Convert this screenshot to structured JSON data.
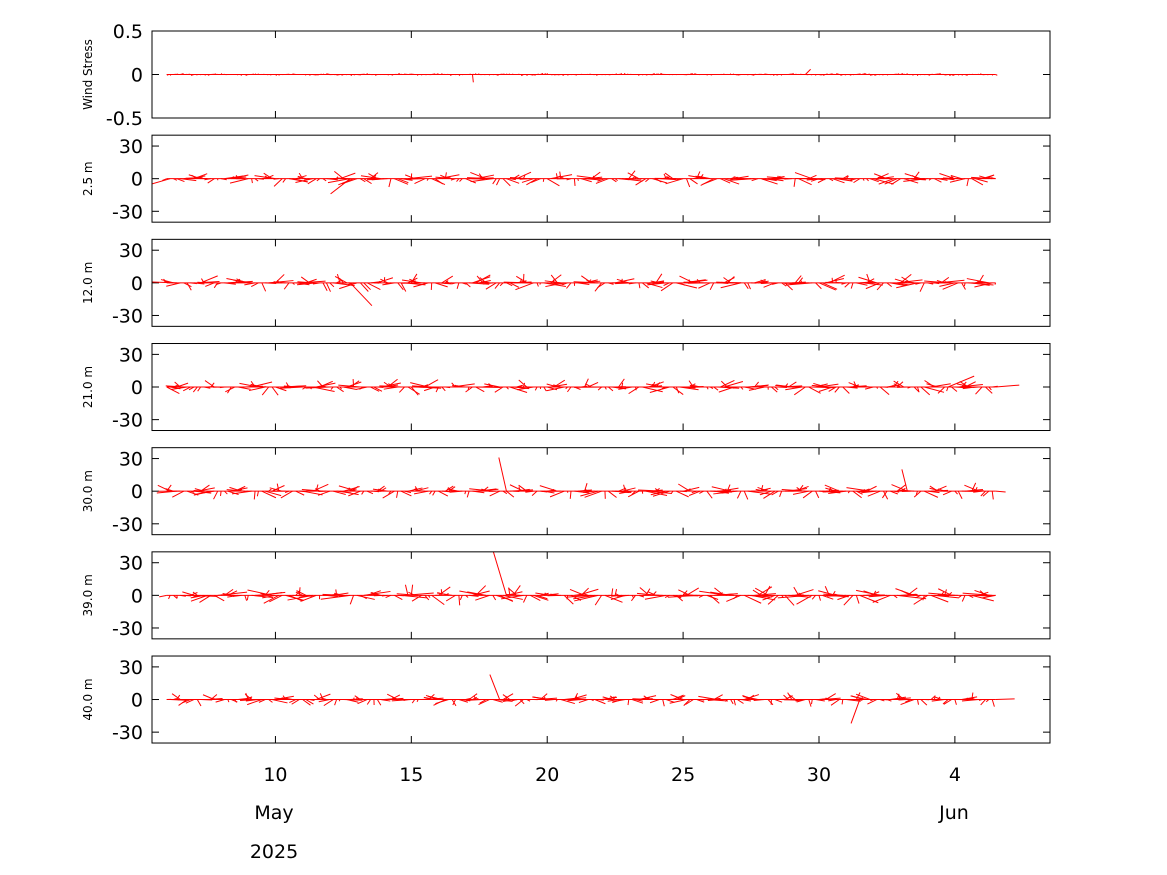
{
  "chart_data": {
    "type": "stick-plot",
    "x_axis": {
      "tick_dates": [
        "2025-05-10",
        "2025-05-15",
        "2025-05-20",
        "2025-05-25",
        "2025-05-30",
        "2025-06-04"
      ],
      "tick_labels": [
        "10",
        "15",
        "20",
        "25",
        "30",
        "4"
      ],
      "month_labels": [
        {
          "text": "May",
          "date": "2025-05-10"
        },
        {
          "text": "Jun",
          "date": "2025-06-04"
        }
      ],
      "year_label": {
        "text": "2025",
        "date": "2025-05-10"
      },
      "xlim": [
        "2025-05-05T11:00",
        "2025-06-07T12:00"
      ],
      "data_range": [
        "2025-05-06",
        "2025-06-05T12:00"
      ]
    },
    "panels": [
      {
        "ylabel": "Wind Stress",
        "ylim": [
          -0.5,
          0.5
        ],
        "yticks": [
          0.5,
          0,
          -0.5
        ],
        "ytick_labels": [
          "0.5",
          "0",
          "-0.5"
        ],
        "amplitude": 0.025,
        "notable": [
          {
            "date": "2025-05-17T06:00",
            "u": 0.01,
            "v": -0.09
          },
          {
            "date": "2025-05-29T12:00",
            "u": 0.06,
            "v": 0.06
          }
        ]
      },
      {
        "ylabel": "2.5 m",
        "ylim": [
          -40,
          40
        ],
        "yticks": [
          30,
          0,
          -30
        ],
        "ytick_labels": [
          "30",
          "0",
          "-30"
        ],
        "amplitude": 12,
        "notable": [
          {
            "date": "2025-05-12T18:00",
            "u": -18,
            "v": -14
          }
        ]
      },
      {
        "ylabel": "12.0 m",
        "ylim": [
          -40,
          40
        ],
        "yticks": [
          30,
          0,
          -30
        ],
        "ytick_labels": [
          "30",
          "0",
          "-30"
        ],
        "amplitude": 13,
        "notable": [
          {
            "date": "2025-05-12T18:00",
            "u": 20,
            "v": -21
          }
        ]
      },
      {
        "ylabel": "21.0 m",
        "ylim": [
          -40,
          40
        ],
        "yticks": [
          30,
          0,
          -30
        ],
        "ytick_labels": [
          "30",
          "0",
          "-30"
        ],
        "amplitude": 12,
        "notable": [
          {
            "date": "2025-06-03T18:00",
            "u": 24,
            "v": 10
          }
        ]
      },
      {
        "ylabel": "30.0 m",
        "ylim": [
          -40,
          40
        ],
        "yticks": [
          30,
          0,
          -30
        ],
        "ytick_labels": [
          "30",
          "0",
          "-30"
        ],
        "amplitude": 12,
        "notable": [
          {
            "date": "2025-05-18T12:00",
            "u": -7,
            "v": 31
          },
          {
            "date": "2025-06-02T06:00",
            "u": -5,
            "v": 20
          }
        ]
      },
      {
        "ylabel": "39.0 m",
        "ylim": [
          -40,
          40
        ],
        "yticks": [
          30,
          0,
          -30
        ],
        "ytick_labels": [
          "30",
          "0",
          "-30"
        ],
        "amplitude": 15,
        "notable": [
          {
            "date": "2025-05-18T12:00",
            "u": -12,
            "v": 40
          }
        ]
      },
      {
        "ylabel": "40.0 m",
        "ylim": [
          -40,
          40
        ],
        "yticks": [
          30,
          0,
          -30
        ],
        "ytick_labels": [
          "30",
          "0",
          "-30"
        ],
        "amplitude": 10,
        "notable": [
          {
            "date": "2025-05-18T06:00",
            "u": -9,
            "v": 23
          },
          {
            "date": "2025-05-31T12:00",
            "u": -8,
            "v": -22
          }
        ]
      }
    ],
    "series_color": "#ff0000",
    "grid": false
  }
}
